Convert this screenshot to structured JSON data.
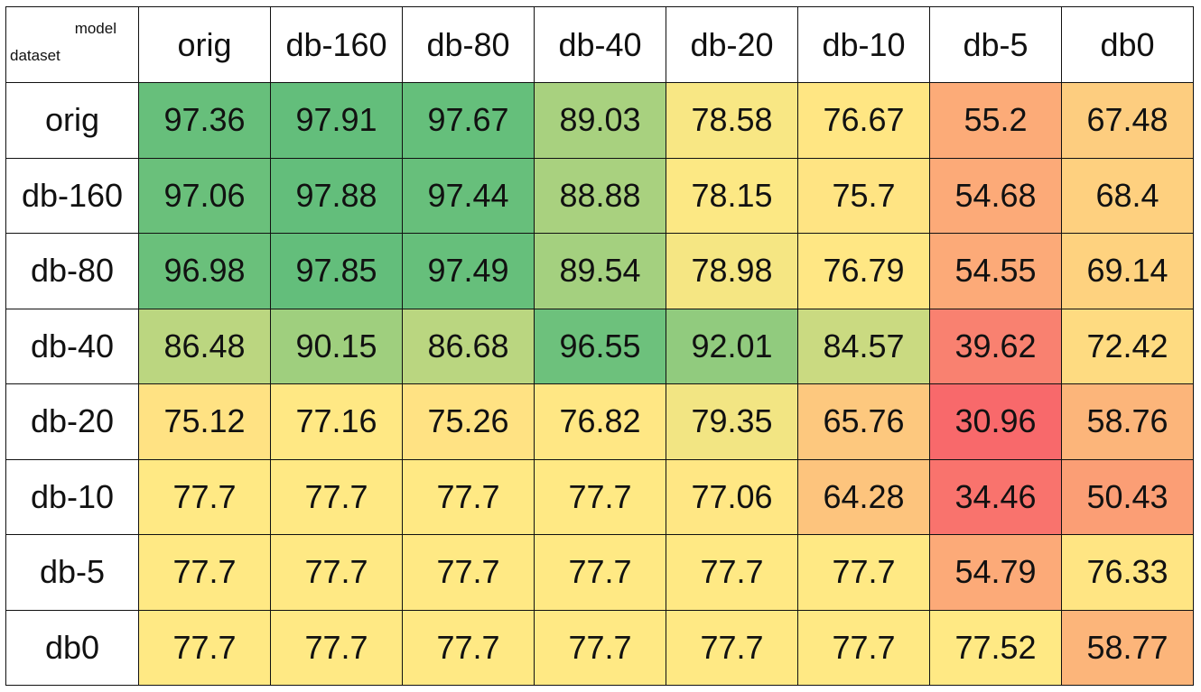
{
  "chart_data": {
    "type": "heatmap",
    "corner": {
      "col_axis_label": "model",
      "row_axis_label": "dataset"
    },
    "columns": [
      "orig",
      "db-160",
      "db-80",
      "db-40",
      "db-20",
      "db-10",
      "db-5",
      "db0"
    ],
    "rows": [
      "orig",
      "db-160",
      "db-80",
      "db-40",
      "db-20",
      "db-10",
      "db-5",
      "db0"
    ],
    "values": [
      [
        "97.36",
        "97.91",
        "97.67",
        "89.03",
        "78.58",
        "76.67",
        "55.2",
        "67.48"
      ],
      [
        "97.06",
        "97.88",
        "97.44",
        "88.88",
        "78.15",
        "75.7",
        "54.68",
        "68.4"
      ],
      [
        "96.98",
        "97.85",
        "97.49",
        "89.54",
        "78.98",
        "76.79",
        "54.55",
        "69.14"
      ],
      [
        "86.48",
        "90.15",
        "86.68",
        "96.55",
        "92.01",
        "84.57",
        "39.62",
        "72.42"
      ],
      [
        "75.12",
        "77.16",
        "75.26",
        "76.82",
        "79.35",
        "65.76",
        "30.96",
        "58.76"
      ],
      [
        "77.7",
        "77.7",
        "77.7",
        "77.7",
        "77.06",
        "64.28",
        "34.46",
        "50.43"
      ],
      [
        "77.7",
        "77.7",
        "77.7",
        "77.7",
        "77.7",
        "77.7",
        "54.79",
        "76.33"
      ],
      [
        "77.7",
        "77.7",
        "77.7",
        "77.7",
        "77.7",
        "77.7",
        "77.52",
        "58.77"
      ]
    ],
    "colors": {
      "low": "#f8696b",
      "mid": "#ffe984",
      "high": "#63be7b"
    }
  }
}
